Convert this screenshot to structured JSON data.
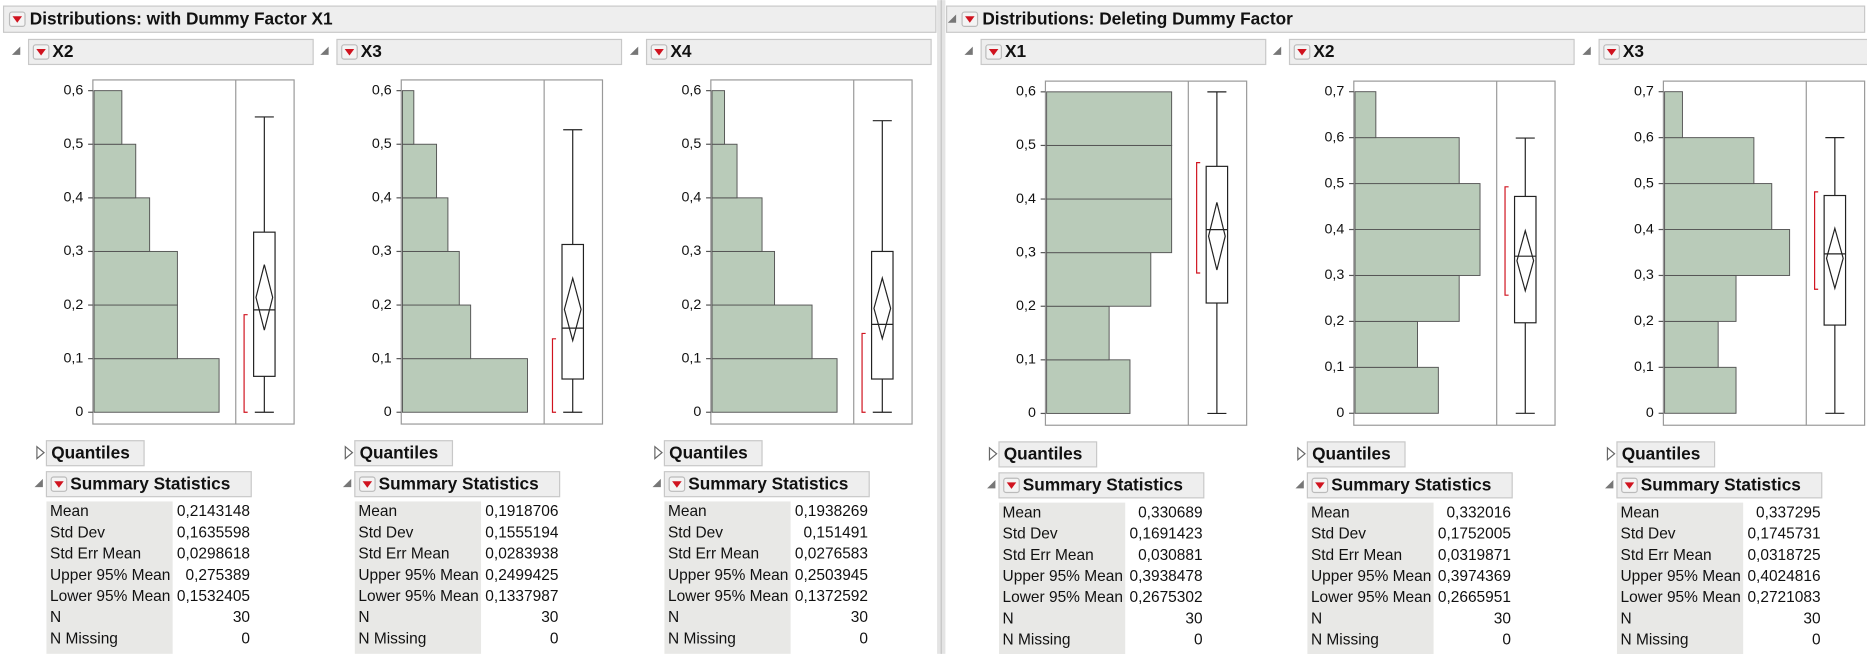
{
  "panels": [
    {
      "title": "Distributions: with Dummy Factor X1",
      "columns": [
        {
          "name": "X2",
          "bins": [
            0,
            0.1,
            0.2,
            0.3,
            0.4,
            0.5,
            0.6
          ],
          "counts": [
            9,
            6,
            6,
            4,
            3,
            2
          ],
          "ylim": [
            -0.022,
            0.62
          ],
          "yticks": [
            0,
            {
              "value": 0.1,
              "label": "0,1"
            },
            {
              "value": 0.2,
              "label": "0,2"
            },
            {
              "value": 0.3,
              "label": "0,3"
            },
            {
              "value": 0.4,
              "label": "0,4"
            },
            {
              "value": 0.5,
              "label": "0,5"
            },
            {
              "value": 0.6,
              "label": "0,6"
            }
          ],
          "box": {
            "min": 0,
            "q1": 0.067,
            "median": 0.191,
            "q3": 0.336,
            "max": 0.551,
            "shortest_half": [
              0,
              0.182
            ]
          },
          "quantiles": "Quantiles",
          "summary": {
            "title": "Summary Statistics",
            "rows": [
              [
                "Mean",
                "0,2143148"
              ],
              [
                "Std Dev",
                "0,1635598"
              ],
              [
                "Std Err Mean",
                "0,0298618"
              ],
              [
                "Upper 95% Mean",
                "0,275389"
              ],
              [
                "Lower 95% Mean",
                "0,1532405"
              ],
              [
                "N",
                "30"
              ],
              [
                "N Missing",
                "0"
              ]
            ]
          }
        },
        {
          "name": "X3",
          "bins": [
            0,
            0.1,
            0.2,
            0.3,
            0.4,
            0.5,
            0.6
          ],
          "counts": [
            11,
            6,
            5,
            4,
            3,
            1
          ],
          "ylim": [
            -0.022,
            0.62
          ],
          "yticks": [
            0,
            {
              "value": 0.1,
              "label": "0,1"
            },
            {
              "value": 0.2,
              "label": "0,2"
            },
            {
              "value": 0.3,
              "label": "0,3"
            },
            {
              "value": 0.4,
              "label": "0,4"
            },
            {
              "value": 0.5,
              "label": "0,5"
            },
            {
              "value": 0.6,
              "label": "0,6"
            }
          ],
          "box": {
            "min": 0,
            "q1": 0.062,
            "median": 0.157,
            "q3": 0.313,
            "max": 0.527,
            "shortest_half": [
              0,
              0.137
            ]
          },
          "quantiles": "Quantiles",
          "summary": {
            "title": "Summary Statistics",
            "rows": [
              [
                "Mean",
                "0,1918706"
              ],
              [
                "Std Dev",
                "0,1555194"
              ],
              [
                "Std Err Mean",
                "0,0283938"
              ],
              [
                "Upper 95% Mean",
                "0,2499425"
              ],
              [
                "Lower 95% Mean",
                "0,1337987"
              ],
              [
                "N",
                "30"
              ],
              [
                "N Missing",
                "0"
              ]
            ]
          }
        },
        {
          "name": "X4",
          "bins": [
            0,
            0.1,
            0.2,
            0.3,
            0.4,
            0.5,
            0.6
          ],
          "counts": [
            10,
            8,
            5,
            4,
            2,
            1
          ],
          "ylim": [
            -0.022,
            0.62
          ],
          "yticks": [
            0,
            {
              "value": 0.1,
              "label": "0,1"
            },
            {
              "value": 0.2,
              "label": "0,2"
            },
            {
              "value": 0.3,
              "label": "0,3"
            },
            {
              "value": 0.4,
              "label": "0,4"
            },
            {
              "value": 0.5,
              "label": "0,5"
            },
            {
              "value": 0.6,
              "label": "0,6"
            }
          ],
          "box": {
            "min": 0,
            "q1": 0.062,
            "median": 0.164,
            "q3": 0.3,
            "max": 0.544,
            "shortest_half": [
              0,
              0.147
            ]
          },
          "quantiles": "Quantiles",
          "summary": {
            "title": "Summary Statistics",
            "rows": [
              [
                "Mean",
                "0,1938269"
              ],
              [
                "Std Dev",
                "0,151491"
              ],
              [
                "Std Err Mean",
                "0,0276583"
              ],
              [
                "Upper 95% Mean",
                "0,2503945"
              ],
              [
                "Lower 95% Mean",
                "0,1372592"
              ],
              [
                "N",
                "30"
              ],
              [
                "N Missing",
                "0"
              ]
            ]
          }
        }
      ]
    },
    {
      "title": "Distributions: Deleting Dummy Factor",
      "columns": [
        {
          "name": "X1",
          "bins": [
            0,
            0.1,
            0.2,
            0.3,
            0.4,
            0.5,
            0.6
          ],
          "counts": [
            4,
            3,
            5,
            6,
            6,
            6
          ],
          "ylim": [
            -0.022,
            0.62
          ],
          "yticks": [
            0,
            {
              "value": 0.1,
              "label": "0,1"
            },
            {
              "value": 0.2,
              "label": "0,2"
            },
            {
              "value": 0.3,
              "label": "0,3"
            },
            {
              "value": 0.4,
              "label": "0,4"
            },
            {
              "value": 0.5,
              "label": "0,5"
            },
            {
              "value": 0.6,
              "label": "0,6"
            }
          ],
          "box": {
            "min": 0,
            "q1": 0.206,
            "median": 0.343,
            "q3": 0.461,
            "max": 0.6,
            "shortest_half": [
              0.262,
              0.468
            ]
          },
          "quantiles": "Quantiles",
          "summary": {
            "title": "Summary Statistics",
            "rows": [
              [
                "Mean",
                "0,330689"
              ],
              [
                "Std Dev",
                "0,1691423"
              ],
              [
                "Std Err Mean",
                "0,030881"
              ],
              [
                "Upper 95% Mean",
                "0,3938478"
              ],
              [
                "Lower 95% Mean",
                "0,2675302"
              ],
              [
                "N",
                "30"
              ],
              [
                "N Missing",
                "0"
              ]
            ]
          }
        },
        {
          "name": "X2",
          "bins": [
            0,
            0.1,
            0.2,
            0.3,
            0.4,
            0.5,
            0.6,
            0.7
          ],
          "counts": [
            4,
            3,
            5,
            6,
            6,
            5,
            1
          ],
          "ylim": [
            -0.026,
            0.723
          ],
          "yticks": [
            0,
            {
              "value": 0.1,
              "label": "0,1"
            },
            {
              "value": 0.2,
              "label": "0,2"
            },
            {
              "value": 0.3,
              "label": "0,3"
            },
            {
              "value": 0.4,
              "label": "0,4"
            },
            {
              "value": 0.5,
              "label": "0,5"
            },
            {
              "value": 0.6,
              "label": "0,6"
            },
            {
              "value": 0.7,
              "label": "0,7"
            }
          ],
          "box": {
            "min": 0,
            "q1": 0.197,
            "median": 0.342,
            "q3": 0.472,
            "max": 0.599,
            "shortest_half": [
              0.257,
              0.493
            ]
          },
          "quantiles": "Quantiles",
          "summary": {
            "title": "Summary Statistics",
            "rows": [
              [
                "Mean",
                "0,332016"
              ],
              [
                "Std Dev",
                "0,1752005"
              ],
              [
                "Std Err Mean",
                "0,0319871"
              ],
              [
                "Upper 95% Mean",
                "0,3974369"
              ],
              [
                "Lower 95% Mean",
                "0,2665951"
              ],
              [
                "N",
                "30"
              ],
              [
                "N Missing",
                "0"
              ]
            ]
          }
        },
        {
          "name": "X3",
          "bins": [
            0,
            0.1,
            0.2,
            0.3,
            0.4,
            0.5,
            0.6,
            0.7
          ],
          "counts": [
            4,
            3,
            4,
            7,
            6,
            5,
            1
          ],
          "ylim": [
            -0.026,
            0.723
          ],
          "yticks": [
            0,
            {
              "value": 0.1,
              "label": "0,1"
            },
            {
              "value": 0.2,
              "label": "0,2"
            },
            {
              "value": 0.3,
              "label": "0,3"
            },
            {
              "value": 0.4,
              "label": "0,4"
            },
            {
              "value": 0.5,
              "label": "0,5"
            },
            {
              "value": 0.6,
              "label": "0,6"
            },
            {
              "value": 0.7,
              "label": "0,7"
            }
          ],
          "box": {
            "min": 0,
            "q1": 0.192,
            "median": 0.347,
            "q3": 0.474,
            "max": 0.6,
            "shortest_half": [
              0.27,
              0.482
            ]
          },
          "quantiles": "Quantiles",
          "summary": {
            "title": "Summary Statistics",
            "rows": [
              [
                "Mean",
                "0,337295"
              ],
              [
                "Std Dev",
                "0,1745731"
              ],
              [
                "Std Err Mean",
                "0,0318725"
              ],
              [
                "Upper 95% Mean",
                "0,4024816"
              ],
              [
                "Lower 95% Mean",
                "0,2721083"
              ],
              [
                "N",
                "30"
              ],
              [
                "N Missing",
                "0"
              ]
            ]
          }
        }
      ]
    }
  ]
}
